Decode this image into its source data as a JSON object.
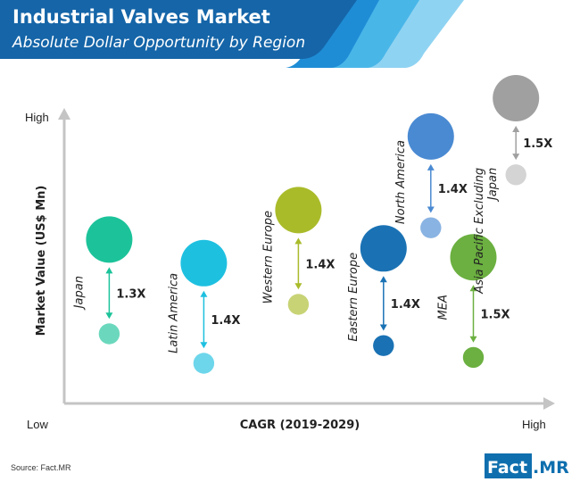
{
  "header": {
    "title": "Industrial Valves Market",
    "subtitle": "Absolute Dollar Opportunity by Region",
    "bg_color": "#1565a8",
    "accent_colors": [
      "#1f8dd6",
      "#49b6e8",
      "#8fd3f2"
    ]
  },
  "chart_data": {
    "type": "scatter",
    "title": "Industrial Valves Market",
    "subtitle": "Absolute Dollar Opportunity by Region",
    "xlabel": "CAGR (2019-2029)",
    "ylabel": "Market Value (US$ Mn)",
    "x_low_label": "Low",
    "x_high_label": "High",
    "y_high_label": "High",
    "xlim": [
      0,
      10
    ],
    "ylim": [
      0,
      10
    ],
    "grid": false,
    "series": [
      {
        "name": "Japan",
        "x": 0.8,
        "y_start": 2.0,
        "y_end": 5.2,
        "size_start": 0.45,
        "size_end": 1.0,
        "multiplier": "1.3X",
        "color": "#1cc39a"
      },
      {
        "name": "Latin America",
        "x": 2.8,
        "y_start": 1.0,
        "y_end": 4.4,
        "size_start": 0.45,
        "size_end": 1.0,
        "multiplier": "1.4X",
        "color": "#1ec0e0"
      },
      {
        "name": "Western Europe",
        "x": 4.8,
        "y_start": 3.0,
        "y_end": 6.2,
        "size_start": 0.45,
        "size_end": 1.0,
        "multiplier": "1.4X",
        "color": "#aabb2a"
      },
      {
        "name": "Eastern Europe",
        "x": 6.6,
        "y_start": 1.6,
        "y_end": 4.9,
        "size_start": 0.45,
        "size_end": 1.0,
        "multiplier": "1.4X",
        "color": "#1a72b4"
      },
      {
        "name": "North America",
        "x": 7.6,
        "y_start": 5.6,
        "y_end": 8.7,
        "size_start": 0.45,
        "size_end": 1.0,
        "multiplier": "1.4X",
        "color": "#4a8ad2"
      },
      {
        "name": "MEA",
        "x": 8.5,
        "y_start": 1.2,
        "y_end": 4.6,
        "size_start": 0.45,
        "size_end": 1.0,
        "multiplier": "1.5X",
        "color": "#6bb040"
      },
      {
        "name": "Asia Pacific Excluding Japan",
        "x": 9.4,
        "y_start": 7.4,
        "y_end": 10.0,
        "size_start": 0.45,
        "size_end": 1.0,
        "multiplier": "1.5X",
        "color": "#a0a0a0"
      }
    ]
  },
  "footer": {
    "source": "Source: Fact.MR",
    "logo_part1": "Fact",
    "logo_part2": ".MR"
  }
}
